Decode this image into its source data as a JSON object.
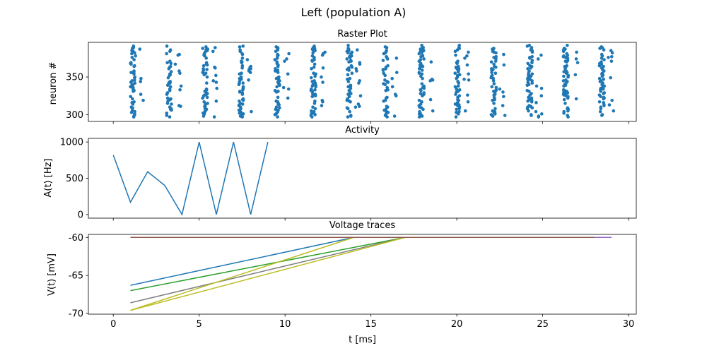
{
  "figure": {
    "suptitle": "Left (population A)"
  },
  "chart_data": [
    {
      "type": "scatter",
      "title": "Raster Plot",
      "xlabel": "",
      "ylabel": "neuron #",
      "xlim": [
        -1.45,
        30.45
      ],
      "ylim": [
        291,
        396
      ],
      "xticks": [
        0,
        5,
        10,
        15,
        20,
        25,
        30
      ],
      "yticks": [
        300,
        350
      ],
      "spike_times": [
        1.0,
        3.1,
        5.2,
        7.3,
        9.4,
        11.5,
        13.6,
        15.7,
        17.8,
        19.9,
        22.0,
        24.1,
        26.2,
        28.3
      ],
      "neuron_range": [
        297,
        392
      ],
      "color": "#1f77b4"
    },
    {
      "type": "line",
      "title": "Activity",
      "xlabel": "",
      "ylabel": "A(t) [Hz]",
      "xlim": [
        -1.45,
        30.45
      ],
      "ylim": [
        -50,
        1050
      ],
      "xticks": [
        0,
        5,
        10,
        15,
        20,
        25,
        30
      ],
      "yticks": [
        0,
        500,
        1000
      ],
      "x": [
        0,
        1,
        2,
        3,
        4,
        5,
        6,
        7,
        8,
        9
      ],
      "y": [
        820,
        170,
        590,
        400,
        0,
        1000,
        0,
        1000,
        0,
        1000
      ],
      "color": "#1f77b4"
    },
    {
      "type": "line",
      "title": "Voltage traces",
      "xlabel": "t [ms]",
      "ylabel": "V(t) [mV]",
      "xlim": [
        -1.45,
        30.45
      ],
      "ylim": [
        -70.1,
        -59.6
      ],
      "xticks": [
        0,
        5,
        10,
        15,
        20,
        25,
        30
      ],
      "yticks": [
        -60,
        -65,
        -70
      ],
      "series": [
        {
          "color": "#1f77b4",
          "x": [
            1,
            14,
            29
          ],
          "y": [
            -66.3,
            -60,
            -60
          ]
        },
        {
          "color": "#2ca02c",
          "x": [
            1,
            17,
            28
          ],
          "y": [
            -67.0,
            -60,
            -60
          ]
        },
        {
          "color": "#7f7f7f",
          "x": [
            1,
            17,
            28
          ],
          "y": [
            -68.6,
            -60,
            -60
          ]
        },
        {
          "color": "#bcbd22",
          "x": [
            1,
            14,
            28
          ],
          "y": [
            -69.6,
            -60,
            -60
          ]
        },
        {
          "color": "#bcbd22",
          "x": [
            1,
            17,
            28
          ],
          "y": [
            -69.6,
            -60,
            -60
          ]
        },
        {
          "color": "#8c564b",
          "x": [
            1,
            28
          ],
          "y": [
            -60,
            -60
          ]
        },
        {
          "color": "#9467bd",
          "x": [
            28,
            29
          ],
          "y": [
            -60,
            -60
          ]
        }
      ]
    }
  ]
}
